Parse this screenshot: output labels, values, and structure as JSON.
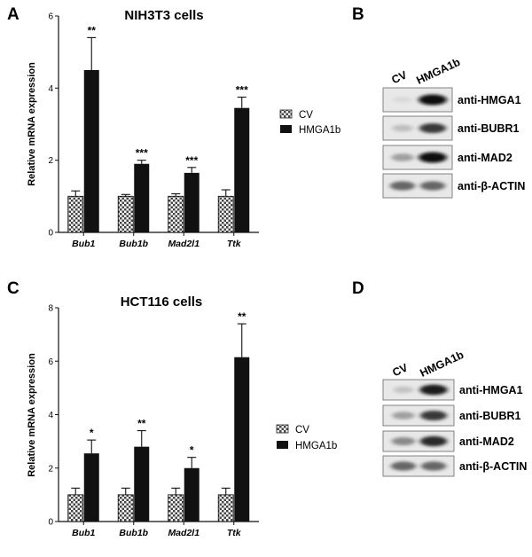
{
  "panels": {
    "A": "A",
    "B": "B",
    "C": "C",
    "D": "D"
  },
  "chart_data": [
    {
      "type": "bar",
      "title": "NIH3T3 cells",
      "ylabel": "Relative mRNA expression",
      "xlabel": "",
      "ylim": [
        0,
        6
      ],
      "yticks": [
        "0",
        "2",
        "4",
        "6"
      ],
      "categories": [
        "Bub1",
        "Bub1b",
        "Mad2l1",
        "Ttk"
      ],
      "series": [
        {
          "name": "CV",
          "values": [
            1.0,
            1.0,
            1.0,
            1.0
          ],
          "errors": [
            0.15,
            0.05,
            0.07,
            0.18
          ]
        },
        {
          "name": "HMGA1b",
          "values": [
            4.5,
            1.9,
            1.65,
            3.45
          ],
          "errors": [
            0.9,
            0.1,
            0.15,
            0.3
          ]
        }
      ],
      "significance": [
        "**",
        "***",
        "***",
        "***"
      ],
      "legend": [
        "CV",
        "HMGA1b"
      ]
    },
    {
      "type": "bar",
      "title": "HCT116 cells",
      "ylabel": "Relative mRNA expression",
      "xlabel": "",
      "ylim": [
        0,
        8
      ],
      "yticks": [
        "0",
        "2",
        "4",
        "6",
        "8"
      ],
      "categories": [
        "Bub1",
        "Bub1b",
        "Mad2l1",
        "Ttk"
      ],
      "series": [
        {
          "name": "CV",
          "values": [
            1.0,
            1.0,
            1.0,
            1.0
          ],
          "errors": [
            0.25,
            0.25,
            0.25,
            0.25
          ]
        },
        {
          "name": "HMGA1b",
          "values": [
            2.55,
            2.8,
            2.0,
            6.15
          ],
          "errors": [
            0.5,
            0.6,
            0.4,
            1.25
          ]
        }
      ],
      "significance": [
        "*",
        "**",
        "*",
        "**"
      ],
      "legend": [
        "CV",
        "HMGA1b"
      ]
    }
  ],
  "blots": [
    {
      "lanes": [
        "CV",
        "HMGA1b"
      ],
      "bands": [
        {
          "label": "anti-HMGA1",
          "intensity": [
            0.08,
            1.0
          ]
        },
        {
          "label": "anti-BUBR1",
          "intensity": [
            0.28,
            0.85
          ]
        },
        {
          "label": "anti-MAD2",
          "intensity": [
            0.45,
            1.0
          ]
        },
        {
          "label": "anti-β-ACTIN",
          "intensity": [
            0.7,
            0.7
          ]
        }
      ]
    },
    {
      "lanes": [
        "CV",
        "HMGA1b"
      ],
      "bands": [
        {
          "label": "anti-HMGA1",
          "intensity": [
            0.25,
            0.95
          ]
        },
        {
          "label": "anti-BUBR1",
          "intensity": [
            0.45,
            0.85
          ]
        },
        {
          "label": "anti-MAD2",
          "intensity": [
            0.55,
            0.9
          ]
        },
        {
          "label": "anti-β-ACTIN",
          "intensity": [
            0.7,
            0.7
          ]
        }
      ]
    }
  ]
}
